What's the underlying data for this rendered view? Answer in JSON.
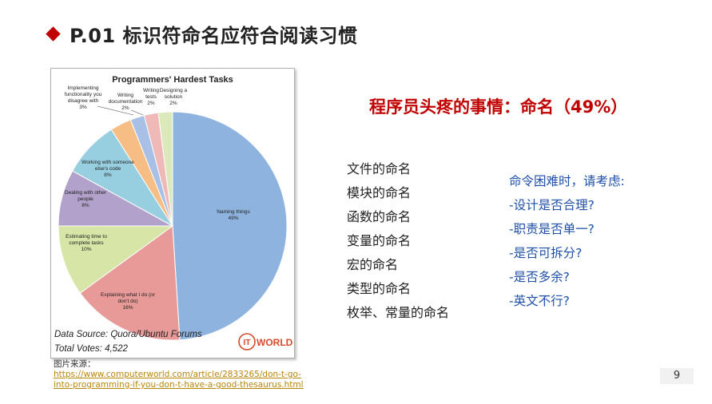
{
  "slide": {
    "title": "P.01 标识符命名应符合阅读习惯",
    "headline": "程序员头疼的事情：命名（49%）",
    "naming_items": [
      "文件的命名",
      "模块的命名",
      "函数的命名",
      "变量的命名",
      "宏的命名",
      "类型的命名",
      "枚举、常量的命名"
    ],
    "advice": [
      "命令困难时，请考虑:",
      "-设计是否合理?",
      "-职责是否单一?",
      "-是否可拆分?",
      "-是否多余?",
      "-英文不行?"
    ],
    "source_label": "图片来源：",
    "source_url_line1": "https://www.computerworld.com/article/2833265/don-t-go-",
    "source_url_line2": "into-programming-if-you-don-t-have-a-good-thesaurus.html",
    "page_number": "9"
  },
  "chart_data": {
    "type": "pie",
    "title": "Programmers' Hardest Tasks",
    "categories": [
      "Naming things",
      "Explaining what I do (or don't do)",
      "Estimating time to complete tasks",
      "Dealing with other people",
      "Working with someone else's code",
      "Implementing functionality you disagree with",
      "Writing documentation",
      "Writing tests",
      "Designing a solution"
    ],
    "values": [
      49,
      16,
      10,
      8,
      8,
      3,
      2,
      2,
      2
    ],
    "labels": [
      "49%",
      "16%",
      "10%",
      "8%",
      "8%",
      "3%",
      "2%",
      "2%",
      "2%"
    ],
    "colors": [
      "#8fb3df",
      "#e79a97",
      "#d7e5a6",
      "#b1a1cb",
      "#97cfe0",
      "#f6bd85",
      "#a9c0e6",
      "#efb9b7",
      "#dce9bb"
    ],
    "footer_source": "Data Source: Quora/Ubuntu Forums",
    "footer_votes": "Total Votes: 4,522",
    "logo_it": "IT",
    "logo_world": "WORLD"
  }
}
